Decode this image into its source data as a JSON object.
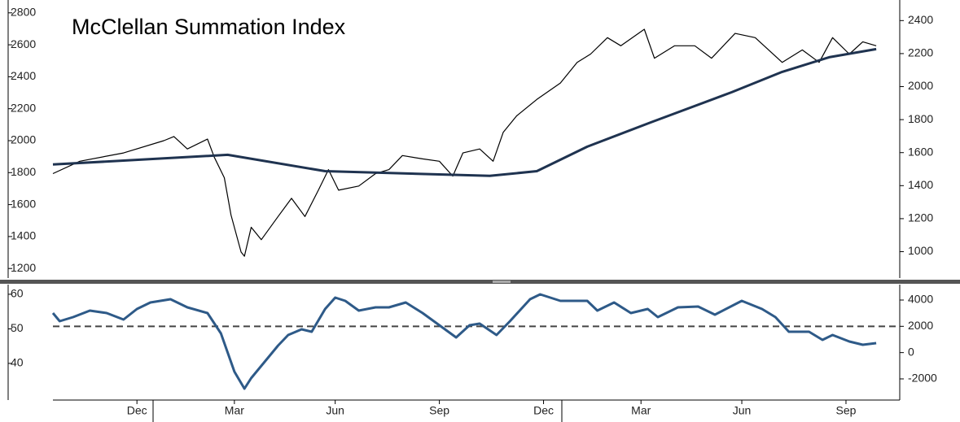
{
  "chart_data": [
    {
      "type": "line",
      "title": "McClellan Summation Index",
      "xlim": [
        0,
        25.2
      ],
      "ylim": [
        1140,
        2860
      ],
      "yticks": [
        1200,
        1400,
        1600,
        1800,
        2000,
        2200,
        2400,
        2600,
        2800
      ],
      "y2lim": [
        840,
        2505
      ],
      "y2ticks": [
        1000,
        1200,
        1400,
        1600,
        1800,
        2000,
        2200,
        2400
      ],
      "series": [
        {
          "color": "#000000",
          "width": 1.2,
          "x": [
            0,
            0.8,
            2.1,
            3.3,
            3.6,
            4.0,
            4.6,
            4.8,
            5.1,
            5.3,
            5.6,
            5.7,
            5.9,
            6.2,
            6.7,
            7.1,
            7.5,
            7.9,
            8.2,
            8.5,
            9.1,
            9.6,
            10.0,
            10.4,
            11.0,
            11.5,
            11.9,
            12.2,
            12.7,
            13.1,
            13.4,
            13.8,
            14.4,
            15.1,
            15.6,
            16.0,
            16.5,
            16.9,
            17.6,
            17.9,
            18.5,
            19.1,
            19.6,
            20.3,
            20.9,
            21.7,
            22.3,
            22.8,
            23.2,
            23.7,
            24.1,
            24.5
          ],
          "values": [
            1794,
            1871,
            1923,
            2000,
            2026,
            1948,
            2010,
            1897,
            1768,
            1535,
            1303,
            1277,
            1458,
            1380,
            1525,
            1639,
            1525,
            1690,
            1819,
            1690,
            1716,
            1794,
            1819,
            1907,
            1886,
            1871,
            1778,
            1923,
            1948,
            1871,
            2052,
            2155,
            2258,
            2361,
            2490,
            2542,
            2645,
            2594,
            2697,
            2516,
            2594,
            2594,
            2516,
            2671,
            2645,
            2490,
            2568,
            2490,
            2645,
            2542,
            2619,
            2594
          ]
        },
        {
          "color": "#1f3350",
          "width": 3,
          "axis": "y2",
          "x": [
            0,
            2.1,
            5.2,
            8.1,
            13.0,
            14.4,
            15.9,
            17.8,
            20.2,
            21.7,
            23.1,
            24.5
          ],
          "values": [
            1528,
            1552,
            1587,
            1488,
            1459,
            1488,
            1636,
            1784,
            1966,
            2089,
            2178,
            2227
          ]
        }
      ]
    },
    {
      "type": "line",
      "xlim": [
        0,
        25.2
      ],
      "xticks": [
        {
          "value": 2.5,
          "label": "Dec"
        },
        {
          "value": 5.4,
          "label": "Mar"
        },
        {
          "value": 8.4,
          "label": "Jun"
        },
        {
          "value": 11.5,
          "label": "Sep"
        },
        {
          "value": 14.6,
          "label": "Dec"
        },
        {
          "value": 17.5,
          "label": "Mar"
        },
        {
          "value": 20.5,
          "label": "Jun"
        },
        {
          "value": 23.6,
          "label": "Sep"
        }
      ],
      "ylim": [
        29.4,
        62.8
      ],
      "yticks": [
        40,
        50,
        60
      ],
      "y2lim": [
        -3610,
        5175
      ],
      "y2ticks": [
        -2000,
        0,
        2000,
        4000
      ],
      "hline": 2000,
      "hline_axis": "y2",
      "series": [
        {
          "color": "#2e5a88",
          "width": 3,
          "axis": "y2",
          "x": [
            0,
            0.2,
            0.6,
            1.1,
            1.6,
            2.1,
            2.5,
            2.9,
            3.5,
            4.0,
            4.6,
            5.0,
            5.4,
            5.7,
            5.9,
            6.3,
            6.7,
            7.0,
            7.4,
            7.7,
            8.1,
            8.4,
            8.7,
            9.1,
            9.6,
            10.0,
            10.5,
            11.0,
            11.5,
            12.0,
            12.4,
            12.7,
            13.2,
            13.6,
            14.2,
            14.5,
            15.1,
            15.9,
            16.2,
            16.7,
            17.2,
            17.7,
            18.0,
            18.6,
            19.2,
            19.7,
            20.5,
            21.1,
            21.5,
            21.9,
            22.5,
            22.9,
            23.2,
            23.7,
            24.1,
            24.5
          ],
          "values": [
            3011,
            2392,
            2701,
            3196,
            3011,
            2516,
            3320,
            3814,
            4062,
            3443,
            3011,
            1465,
            -1452,
            -2741,
            -1937,
            -700,
            537,
            1341,
            1774,
            1588,
            3320,
            4186,
            3938,
            3196,
            3443,
            3443,
            3814,
            3011,
            2083,
            1155,
            2083,
            2207,
            1341,
            2392,
            4062,
            4433,
            3938,
            3938,
            3196,
            3814,
            3011,
            3320,
            2701,
            3443,
            3505,
            2887,
            3938,
            3320,
            2701,
            1588,
            1588,
            970,
            1341,
            846,
            599,
            722
          ]
        }
      ]
    }
  ]
}
